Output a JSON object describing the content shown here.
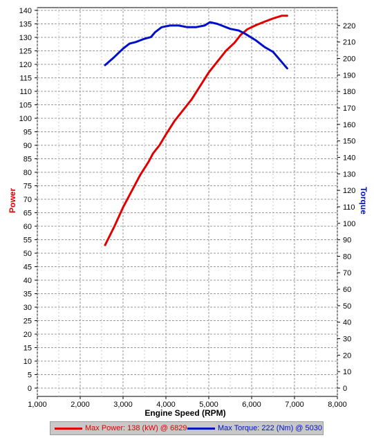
{
  "colors": {
    "power": "#e00000",
    "torque": "#0010c8",
    "grid": "#9a9a9a"
  },
  "chart_data": {
    "type": "line",
    "xlabel": "Engine Speed (RPM)",
    "ylabel_left": "Power",
    "ylabel_right": "Torque",
    "xlim": [
      1000,
      8000
    ],
    "ylim_left": [
      0,
      140
    ],
    "ylim_right": [
      0,
      225
    ],
    "x_ticks": [
      "1,000",
      "2,000",
      "3,000",
      "4,000",
      "5,000",
      "6,000",
      "7,000",
      "8,000"
    ],
    "y_left_ticks": [
      "0",
      "5",
      "10",
      "15",
      "20",
      "25",
      "30",
      "35",
      "40",
      "45",
      "50",
      "55",
      "60",
      "65",
      "70",
      "75",
      "80",
      "85",
      "90",
      "95",
      "100",
      "105",
      "110",
      "115",
      "120",
      "125",
      "130",
      "135",
      "140"
    ],
    "y_right_ticks": [
      "0",
      "10",
      "20",
      "30",
      "40",
      "50",
      "60",
      "70",
      "80",
      "90",
      "100",
      "110",
      "120",
      "130",
      "140",
      "150",
      "160",
      "170",
      "180",
      "190",
      "200",
      "210",
      "220"
    ],
    "grid": true,
    "series": [
      {
        "name": "Power",
        "axis": "left",
        "color": "#e00000",
        "x": [
          2580,
          2800,
          3000,
          3200,
          3400,
          3600,
          3700,
          3850,
          4000,
          4200,
          4400,
          4600,
          4800,
          5000,
          5200,
          5400,
          5600,
          5750,
          5900,
          6100,
          6300,
          6500,
          6700,
          6829
        ],
        "y": [
          53,
          60,
          67,
          73,
          79,
          84,
          87,
          90,
          94,
          99,
          103,
          107,
          112,
          117,
          121,
          125,
          128,
          131,
          133,
          134.5,
          135.8,
          137,
          138,
          138
        ]
      },
      {
        "name": "Torque",
        "axis": "right",
        "color": "#0010c8",
        "x": [
          2580,
          2800,
          3000,
          3150,
          3300,
          3500,
          3650,
          3750,
          3900,
          4100,
          4300,
          4500,
          4700,
          4900,
          5030,
          5200,
          5300,
          5500,
          5700,
          5850,
          6100,
          6300,
          6500,
          6829
        ],
        "y": [
          196,
          201,
          206,
          209,
          210,
          212,
          213,
          216,
          219,
          220,
          220,
          219,
          219,
          220,
          222,
          221,
          220,
          218,
          217,
          215,
          211,
          207,
          204,
          194
        ]
      }
    ],
    "legend": {
      "placement": "bottom",
      "entries": [
        "Max Power: 138 (kW) @ 6829",
        "Max Torque: 222 (Nm) @ 5030"
      ]
    }
  }
}
